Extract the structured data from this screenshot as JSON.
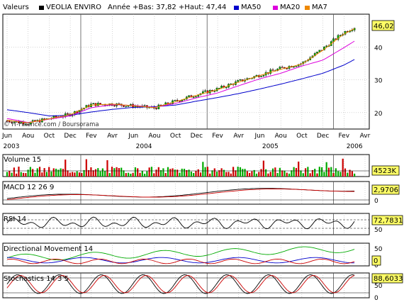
{
  "header": {
    "label": "Valeurs",
    "instrument": "VEOLIA ENVIRO",
    "stats": "Année +Bas: 37,82 +Haut: 47,44",
    "legend": [
      {
        "name": "MA50",
        "color": "#0000cc"
      },
      {
        "name": "MA20",
        "color": "#dd00dd"
      },
      {
        "name": "MA7",
        "color": "#ee8800"
      }
    ]
  },
  "watermark": "© IT-Finance.com / Boursorama",
  "x_axis": {
    "months": [
      "Jun",
      "Aou",
      "Oct",
      "Dec",
      "Fev",
      "Avr",
      "Jun",
      "Aou",
      "Oct",
      "Dec",
      "Fev",
      "Avr",
      "Jun",
      "Aou",
      "Oct",
      "Dec",
      "Fev",
      "Avr"
    ],
    "years": [
      "2003",
      "2004",
      "2005",
      "2006"
    ]
  },
  "colors": {
    "up": "#00aa00",
    "down": "#cc0000",
    "ma50": "#0000cc",
    "ma20": "#dd00dd",
    "ma7": "#ee8800",
    "grid": "#aaaaaa"
  },
  "chart_data": [
    {
      "type": "line",
      "title": "VEOLIA ENVIRO",
      "x": [
        "2003-06",
        "2003-08",
        "2003-10",
        "2003-12",
        "2004-02",
        "2004-04",
        "2004-06",
        "2004-08",
        "2004-10",
        "2004-12",
        "2005-02",
        "2005-04",
        "2005-06",
        "2005-08",
        "2005-10",
        "2005-12",
        "2006-02",
        "2006-03"
      ],
      "series": [
        {
          "name": "VEOLIA ENVIRO",
          "values": [
            17.5,
            16.8,
            18.2,
            19.5,
            22.5,
            22.6,
            22.0,
            21.4,
            23.5,
            25.5,
            27.2,
            29.5,
            31.5,
            33.5,
            35.0,
            39.5,
            44.5,
            46.02
          ]
        },
        {
          "name": "MA50",
          "values": [
            20.9,
            20.0,
            19.0,
            19.2,
            20.2,
            21.0,
            21.6,
            21.8,
            22.3,
            23.5,
            24.6,
            25.8,
            27.2,
            28.7,
            30.3,
            32.0,
            34.5,
            36.2
          ]
        },
        {
          "name": "MA20",
          "values": [
            18.2,
            17.0,
            18.0,
            19.0,
            21.5,
            22.4,
            22.2,
            21.6,
            22.8,
            24.5,
            26.0,
            28.2,
            30.3,
            32.0,
            34.2,
            36.0,
            39.8,
            41.8
          ]
        },
        {
          "name": "MA7",
          "values": [
            17.7,
            16.9,
            18.1,
            19.4,
            22.3,
            22.6,
            22.1,
            21.5,
            23.3,
            25.3,
            27.0,
            29.3,
            31.3,
            33.2,
            34.8,
            39.0,
            44.0,
            45.6
          ]
        }
      ],
      "ylim": [
        15,
        50
      ],
      "yticks": [
        20,
        30,
        40
      ],
      "last_value": "46,02",
      "grid": true
    },
    {
      "type": "bar",
      "title": "Volume 15",
      "last_value": "4523K",
      "grid": true
    },
    {
      "type": "line",
      "title": "MACD 12 26 9",
      "yticks": [
        0
      ],
      "last_value": "2,9706"
    },
    {
      "type": "line",
      "title": "RSI 14",
      "ylim": [
        0,
        100
      ],
      "yticks": [
        50
      ],
      "last_value": "72,7831"
    },
    {
      "type": "line",
      "title": "Directional Movement 14",
      "ylim": [
        0,
        70
      ],
      "yticks": [
        0,
        50
      ],
      "last_value": "0"
    },
    {
      "type": "line",
      "title": "Stochastics 14 3 5",
      "ylim": [
        0,
        100
      ],
      "yticks": [
        0,
        50
      ],
      "last_value": "88,6033"
    }
  ]
}
